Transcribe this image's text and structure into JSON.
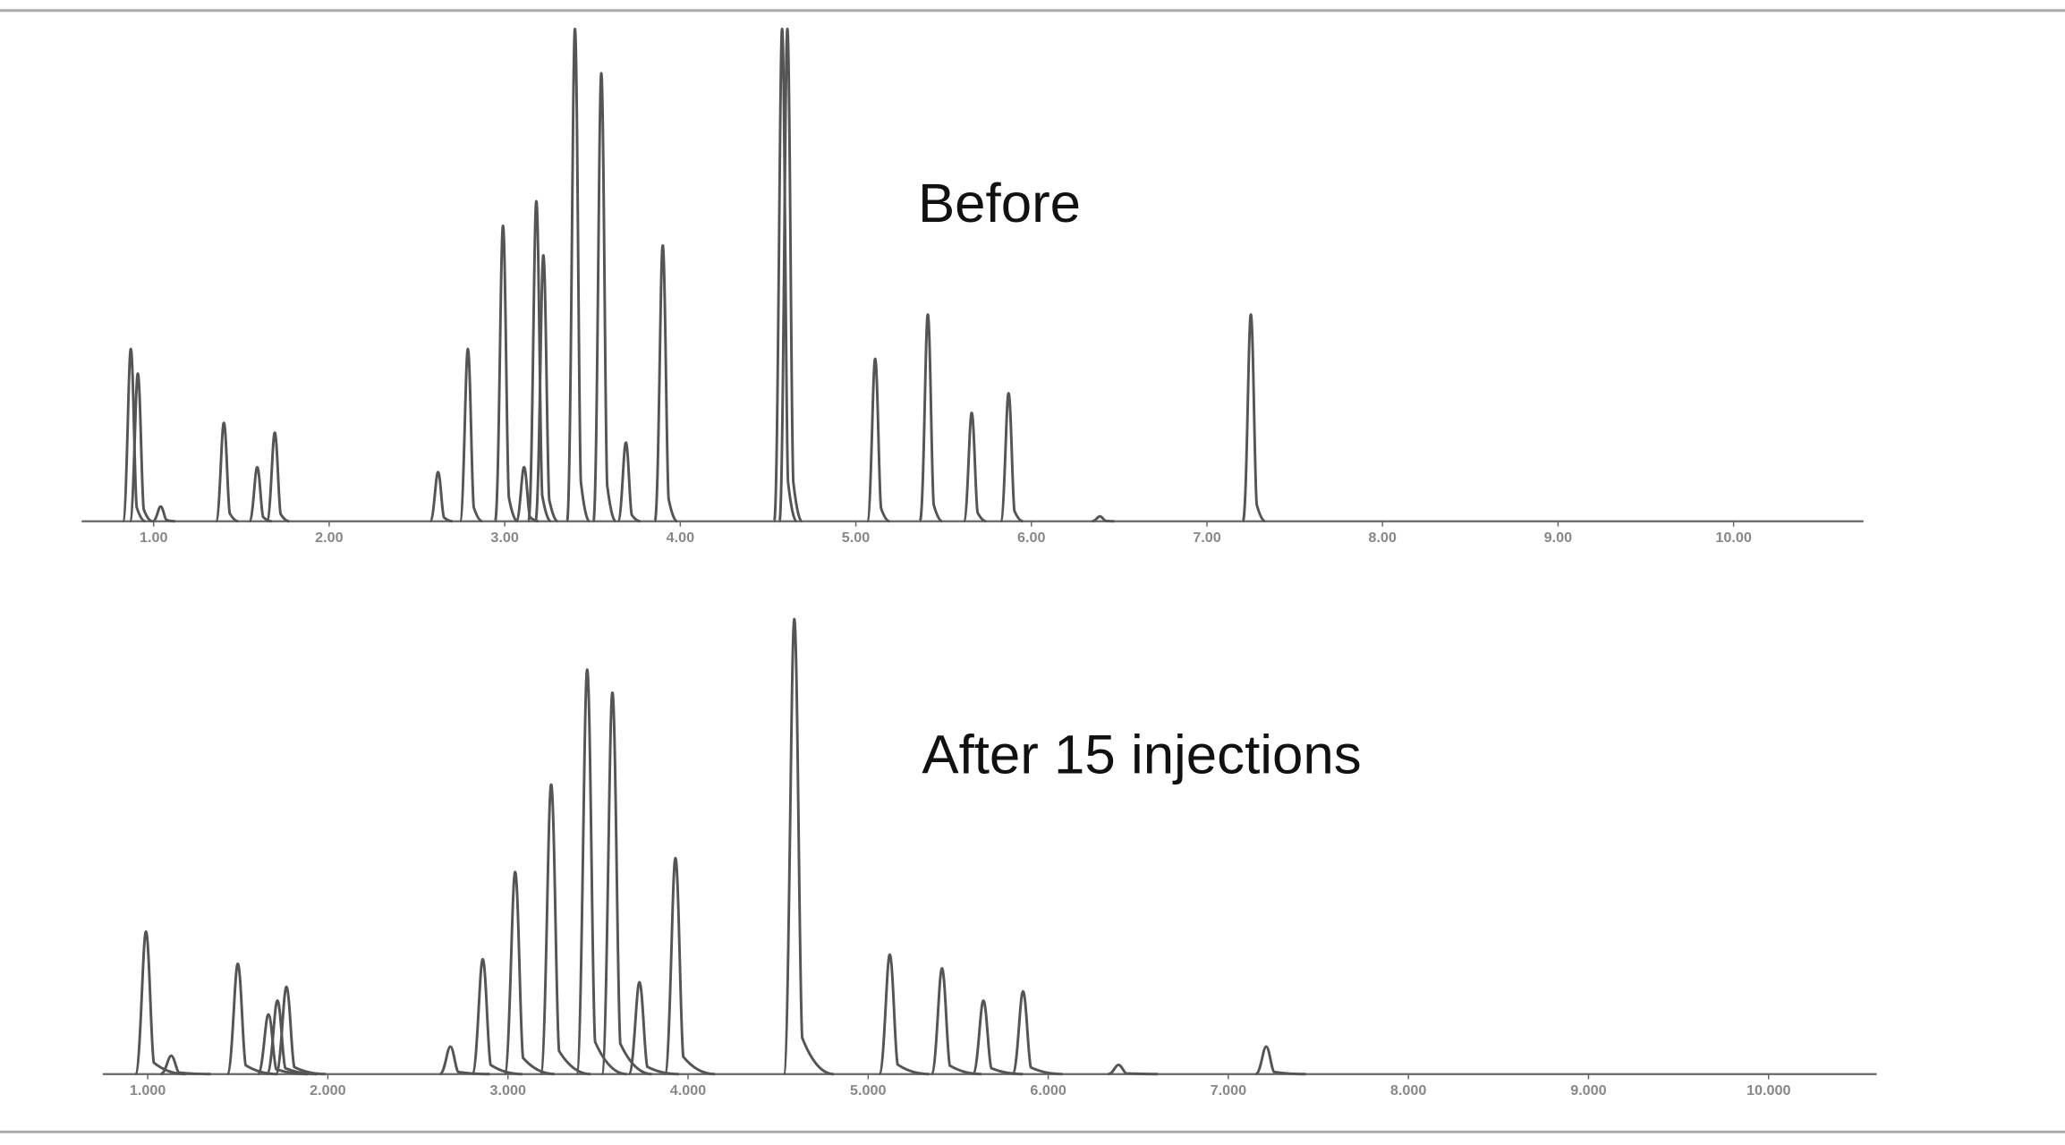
{
  "chart_data": [
    {
      "type": "peaks",
      "annotation": "Before",
      "xlim": [
        0.59,
        10.74
      ],
      "ylim": [
        0,
        100
      ],
      "xticks": [
        {
          "value": 1,
          "label": "1.00"
        },
        {
          "value": 2,
          "label": "2.00"
        },
        {
          "value": 3,
          "label": "3.00"
        },
        {
          "value": 4,
          "label": "4.00"
        },
        {
          "value": 5,
          "label": "5.00"
        },
        {
          "value": 6,
          "label": "6.00"
        },
        {
          "value": 7,
          "label": "7.00"
        },
        {
          "value": 8,
          "label": "8.00"
        },
        {
          "value": 9,
          "label": "9.00"
        },
        {
          "value": 10,
          "label": "10.00"
        }
      ],
      "x": [
        0.87,
        0.91,
        1.04,
        1.4,
        1.59,
        1.69,
        2.62,
        2.79,
        2.99,
        3.11,
        3.18,
        3.22,
        3.4,
        3.55,
        3.69,
        3.9,
        4.58,
        4.61,
        5.11,
        5.41,
        5.66,
        5.87,
        6.39,
        7.25
      ],
      "values": [
        35,
        30,
        3,
        20,
        11,
        18,
        10,
        35,
        60,
        11,
        65,
        54,
        100,
        91,
        16,
        56,
        100,
        100,
        33,
        42,
        22,
        26,
        1,
        42
      ],
      "color": "#555555"
    },
    {
      "type": "peaks",
      "annotation": "After 15 injections",
      "xlim": [
        0.75,
        10.6
      ],
      "ylim": [
        0,
        100
      ],
      "xticks": [
        {
          "value": 1,
          "label": "1.000"
        },
        {
          "value": 2,
          "label": "2.000"
        },
        {
          "value": 3,
          "label": "3.000"
        },
        {
          "value": 4,
          "label": "4.000"
        },
        {
          "value": 5,
          "label": "5.000"
        },
        {
          "value": 6,
          "label": "6.000"
        },
        {
          "value": 7,
          "label": "7.000"
        },
        {
          "value": 8,
          "label": "8.000"
        },
        {
          "value": 9,
          "label": "9.000"
        },
        {
          "value": 10,
          "label": "10.000"
        }
      ],
      "x": [
        0.99,
        1.13,
        1.5,
        1.67,
        1.72,
        1.77,
        2.68,
        2.86,
        3.04,
        3.24,
        3.44,
        3.58,
        3.73,
        3.93,
        4.59,
        5.12,
        5.41,
        5.64,
        5.86,
        6.39,
        7.21
      ],
      "values": [
        31,
        4,
        24,
        13,
        16,
        19,
        6,
        25,
        44,
        63,
        88,
        83,
        20,
        47,
        99,
        26,
        23,
        16,
        18,
        2,
        6
      ],
      "color": "#555555"
    }
  ]
}
